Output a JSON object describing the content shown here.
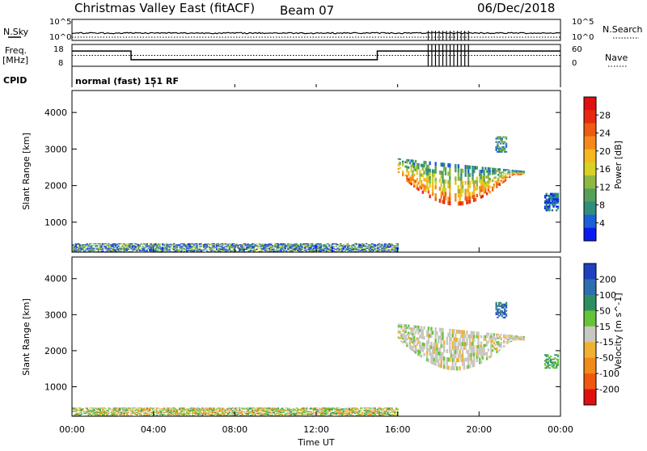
{
  "header": {
    "radar_title": "Christmas Valley East (fitACF)",
    "beam": "Beam 07",
    "date": "06/Dec/2018"
  },
  "summary_panel": {
    "left_labels": {
      "nsky": "N.Sky",
      "freq_top": "Freq.",
      "freq_unit": "[MHz]",
      "cpid": "CPID"
    },
    "right_labels": {
      "nsearch": "N.Search",
      "nave": "Nave"
    },
    "left_ticks": {
      "noise_top": "10^5",
      "noise_bottom": "10^0",
      "freq_top": "18",
      "freq_bottom": "8"
    },
    "right_ticks": {
      "noise_top": "10^5",
      "noise_bottom": "10^0",
      "nave_top": "60",
      "nave_bottom": "0"
    },
    "cpid_text": "normal (fast) 151 RF"
  },
  "chart_data": [
    {
      "type": "heatmap",
      "name": "power",
      "ylabel": "Slant Range [km]",
      "yticks": [
        1000,
        2000,
        3000,
        4000
      ],
      "ylim": [
        180,
        4600
      ],
      "xlim": [
        0,
        24
      ],
      "colorbar": {
        "label": "Power [dB]",
        "ticks": [
          "4",
          "8",
          "12",
          "16",
          "20",
          "24",
          "28"
        ],
        "colors": [
          "#0a1cf0",
          "#1d5fd6",
          "#2f8f7a",
          "#56a05a",
          "#8fb843",
          "#d7d128",
          "#f5b820",
          "#f58a1a",
          "#ef5a14",
          "#e82a10",
          "#e01010"
        ]
      },
      "regions": [
        {
          "t0": 0.0,
          "t1": 16.0,
          "r0": 180,
          "r1": 420,
          "level": "low-mixed"
        },
        {
          "t0": 16.0,
          "t1": 22.2,
          "r0": 1450,
          "r1": 2750,
          "level": "high"
        },
        {
          "t0": 20.8,
          "t1": 21.3,
          "r0": 2900,
          "r1": 3350,
          "level": "mid"
        },
        {
          "t0": 23.2,
          "t1": 23.9,
          "r0": 1300,
          "r1": 1800,
          "level": "low"
        }
      ]
    },
    {
      "type": "heatmap",
      "name": "velocity",
      "ylabel": "Slant Range [km]",
      "yticks": [
        1000,
        2000,
        3000,
        4000
      ],
      "ylim": [
        180,
        4600
      ],
      "xlim": [
        0,
        24
      ],
      "colorbar": {
        "label": "Velocity [m s^-1]",
        "ticks": [
          "200",
          "100",
          "50",
          "15",
          "-15",
          "-50",
          "-100",
          "-200"
        ],
        "colors": [
          "#2040c0",
          "#2c6fb0",
          "#2f8e60",
          "#66c43a",
          "#c8c8c0",
          "#f0b030",
          "#f08a1a",
          "#ef5810",
          "#e01010"
        ]
      },
      "regions": [
        {
          "t0": 0.0,
          "t1": 16.0,
          "r0": 180,
          "r1": 420,
          "level": "mixed"
        },
        {
          "t0": 16.0,
          "t1": 22.2,
          "r0": 1500,
          "r1": 2750,
          "level": "ground"
        },
        {
          "t0": 20.8,
          "t1": 21.3,
          "r0": 2900,
          "r1": 3350,
          "level": "positive"
        },
        {
          "t0": 23.2,
          "t1": 23.9,
          "r0": 1500,
          "r1": 1900,
          "level": "positive-small"
        }
      ]
    }
  ],
  "time_axis": {
    "ticks": [
      "00:00",
      "04:00",
      "08:00",
      "12:00",
      "16:00",
      "20:00",
      "00:00"
    ],
    "xlabel": "Time UT"
  },
  "summary_series": {
    "nsky_level": 0.35,
    "freq_steps": [
      {
        "t0": 0.0,
        "t1": 2.9,
        "value": 15
      },
      {
        "t0": 2.9,
        "t1": 15.0,
        "value": 11
      },
      {
        "t0": 15.0,
        "t1": 24.0,
        "value": 15
      }
    ],
    "nave_level": 0.5
  }
}
